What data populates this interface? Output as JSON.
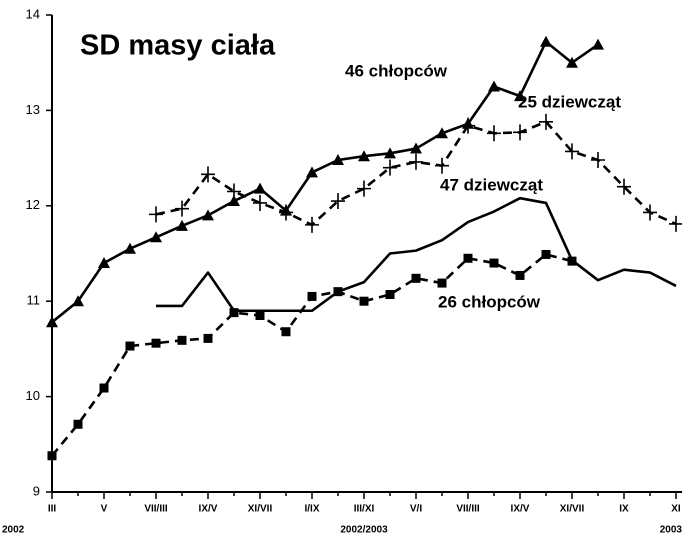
{
  "chart_data": {
    "type": "line",
    "title": "SD masy ciała",
    "categories": [
      "III",
      null,
      "V",
      null,
      "VII/III",
      null,
      "IX/V",
      null,
      "XI/VII",
      null,
      "I/IX",
      null,
      "III/XI",
      null,
      "V/I",
      null,
      "VII/III",
      null,
      "IX/V",
      null,
      "XI/VII",
      null,
      "IX",
      null,
      "XI"
    ],
    "period_labels": [
      "2002",
      "2002/2003",
      "2003"
    ],
    "ylim": [
      9,
      14
    ],
    "yticks": [
      9,
      10,
      11,
      12,
      13,
      14
    ],
    "series": [
      {
        "name": "46 chłopców",
        "color": "#000000",
        "marker": "triangle",
        "dashed": false,
        "values": [
          10.78,
          11.0,
          11.4,
          11.55,
          11.67,
          11.79,
          11.9,
          12.05,
          12.18,
          11.95,
          12.35,
          12.48,
          12.52,
          12.55,
          12.6,
          12.76,
          12.86,
          13.25,
          13.15,
          13.72,
          13.5,
          13.69,
          null,
          null,
          null
        ]
      },
      {
        "name": "25 dziewcząt",
        "color": "#000000",
        "marker": "plus",
        "dashed": true,
        "values": [
          null,
          null,
          null,
          null,
          11.91,
          11.97,
          12.33,
          12.15,
          12.03,
          11.93,
          11.8,
          12.05,
          12.18,
          12.4,
          12.46,
          12.42,
          12.84,
          12.76,
          12.77,
          12.88,
          12.57,
          12.48,
          12.2,
          11.93,
          11.81
        ]
      },
      {
        "name": "47 dziewcząt",
        "color": "#000000",
        "marker": "none",
        "dashed": false,
        "values": [
          null,
          null,
          null,
          null,
          10.95,
          10.95,
          11.3,
          10.9,
          10.9,
          10.9,
          10.9,
          11.1,
          11.2,
          11.5,
          11.53,
          11.64,
          11.83,
          11.94,
          12.08,
          12.03,
          11.43,
          11.22,
          11.33,
          11.3,
          11.16
        ]
      },
      {
        "name": "26 chłopców",
        "color": "#000000",
        "marker": "square",
        "dashed": true,
        "values": [
          9.38,
          9.71,
          10.09,
          10.53,
          10.56,
          10.59,
          10.61,
          10.88,
          10.85,
          10.68,
          11.05,
          11.1,
          11.0,
          11.07,
          11.24,
          11.19,
          11.45,
          11.4,
          11.27,
          11.49,
          11.42,
          null,
          null,
          null,
          null
        ]
      }
    ]
  }
}
